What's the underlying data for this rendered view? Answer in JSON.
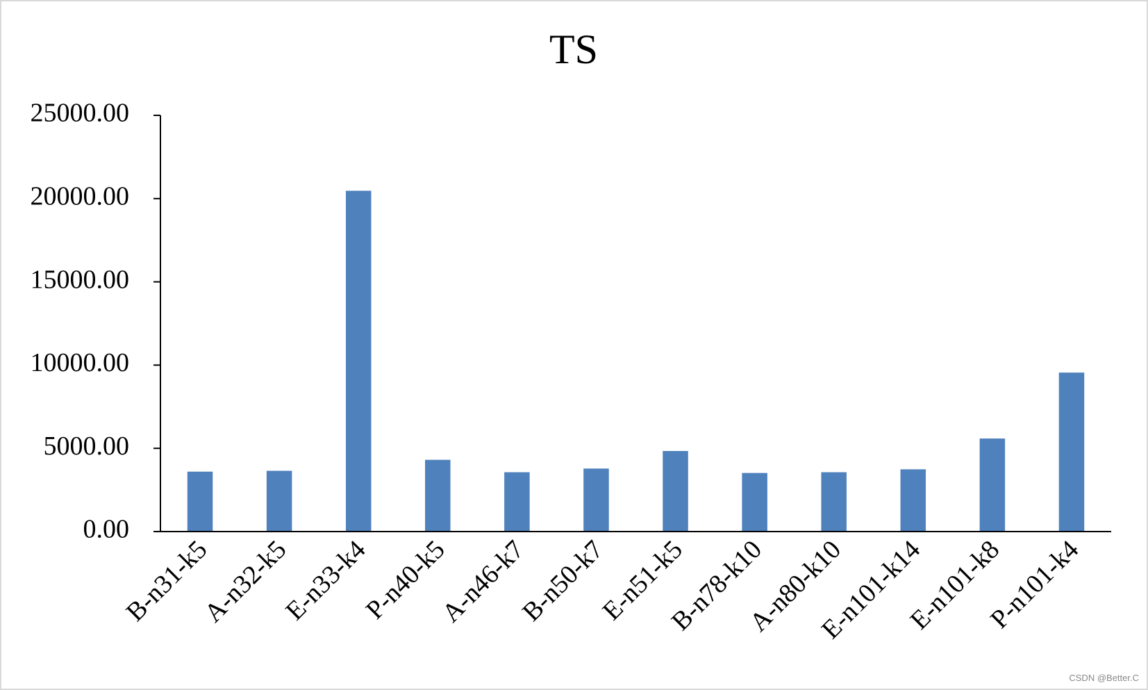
{
  "chart_data": {
    "type": "bar",
    "title": "TS",
    "categories": [
      "B-n31-k5",
      "A-n32-k5",
      "E-n33-k4",
      "P-n40-k5",
      "A-n46-k7",
      "B-n50-k7",
      "E-n51-k5",
      "B-n78-k10",
      "A-n80-k10",
      "E-n101-k14",
      "E-n101-k8",
      "P-n101-k4"
    ],
    "values": [
      3600,
      3650,
      20470,
      4310,
      3565,
      3785,
      4840,
      3520,
      3565,
      3740,
      5590,
      9550
    ],
    "color": "#4f81bd",
    "ylim": [
      0,
      25000
    ],
    "yticks": [
      {
        "value": 0,
        "label": "0.00"
      },
      {
        "value": 5000,
        "label": "5000.00"
      },
      {
        "value": 10000,
        "label": "10000.00"
      },
      {
        "value": 15000,
        "label": "15000.00"
      },
      {
        "value": 20000,
        "label": "20000.00"
      },
      {
        "value": 25000,
        "label": "25000.00"
      }
    ],
    "grid": false,
    "watermark": "CSDN @Better.C"
  }
}
